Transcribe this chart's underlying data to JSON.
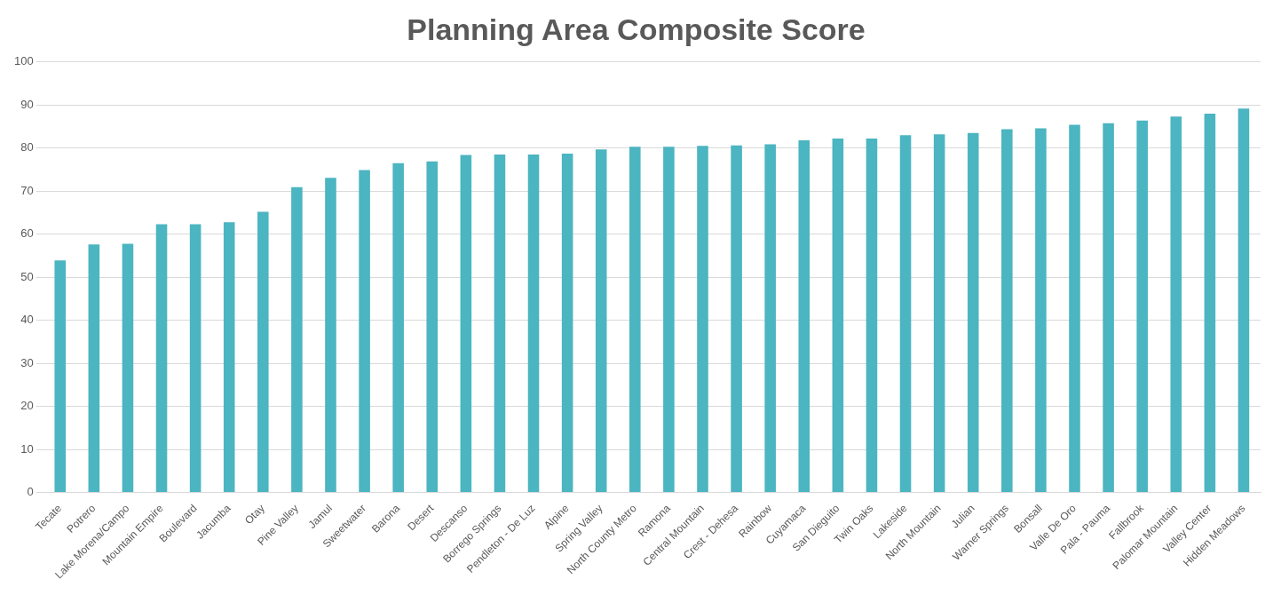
{
  "chart_data": {
    "type": "bar",
    "title": "Planning Area Composite Score",
    "categories": [
      "Tecate",
      "Potrero",
      "Lake Morena/Campo",
      "Mountain Empire",
      "Boulevard",
      "Jacumba",
      "Otay",
      "Pine Valley",
      "Jamul",
      "Sweetwater",
      "Barona",
      "Desert",
      "Descanso",
      "Borrego Springs",
      "Pendleton - De Luz",
      "Alpine",
      "Spring Valley",
      "North County Metro",
      "Ramona",
      "Central Mountain",
      "Crest - Dehesa",
      "Rainbow",
      "Cuyamaca",
      "San Dieguito",
      "Twin Oaks",
      "Lakeside",
      "North Mountain",
      "Julian",
      "Warner Springs",
      "Bonsall",
      "Valle De Oro",
      "Pala - Pauma",
      "Fallbrook",
      "Palomar Mountain",
      "Valley Center",
      "Hidden Meadows"
    ],
    "values": [
      53.9,
      57.6,
      57.8,
      62.3,
      62.3,
      62.8,
      65.2,
      70.9,
      73.1,
      74.9,
      76.5,
      76.9,
      78.4,
      78.5,
      78.5,
      78.7,
      79.7,
      80.3,
      80.3,
      80.5,
      80.6,
      80.9,
      81.8,
      82.2,
      82.2,
      83.0,
      83.2,
      83.5,
      84.4,
      84.6,
      85.4,
      85.8,
      86.4,
      87.3,
      88.0,
      89.2
    ],
    "color": "#4bb5c1",
    "ylim": [
      0,
      100
    ],
    "yticks": [
      0,
      10,
      20,
      30,
      40,
      50,
      60,
      70,
      80,
      90,
      100
    ],
    "grid": "y",
    "legend": false
  }
}
